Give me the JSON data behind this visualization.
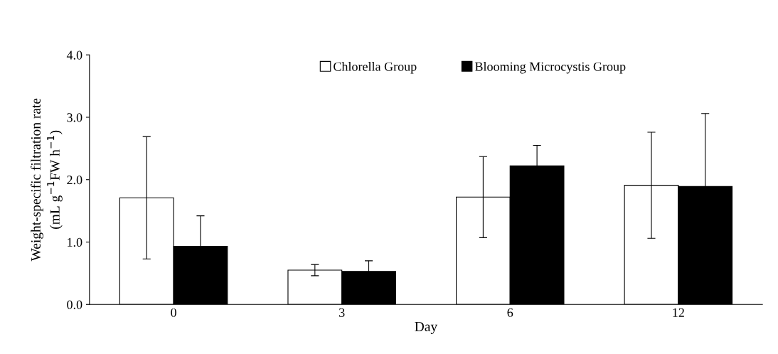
{
  "chart_data": {
    "type": "bar",
    "xlabel": "Day",
    "ylabel": "Weight-specific filtration rate\n(mL g$^{−1}$FW h$^{−1}$)",
    "categories": [
      "0",
      "3",
      "6",
      "12"
    ],
    "series": [
      {
        "name": "Chlorella Group",
        "color": "#ffffff",
        "values": [
          1.71,
          0.55,
          1.72,
          1.91
        ],
        "errors": [
          0.98,
          0.09,
          0.65,
          0.85
        ]
      },
      {
        "name": "Blooming Microcystis Group",
        "color": "#000000",
        "values": [
          0.93,
          0.53,
          2.22,
          1.89
        ],
        "errors": [
          0.49,
          0.17,
          0.33,
          1.17
        ]
      }
    ],
    "ylim": [
      0,
      4
    ],
    "yticks": [
      {
        "value": 0,
        "label": "0.0"
      },
      {
        "value": 1,
        "label": "1.0"
      },
      {
        "value": 2,
        "label": "2.0"
      },
      {
        "value": 3,
        "label": "3.0"
      },
      {
        "value": 4,
        "label": "4.0"
      }
    ],
    "grid": false,
    "legend": "top"
  }
}
